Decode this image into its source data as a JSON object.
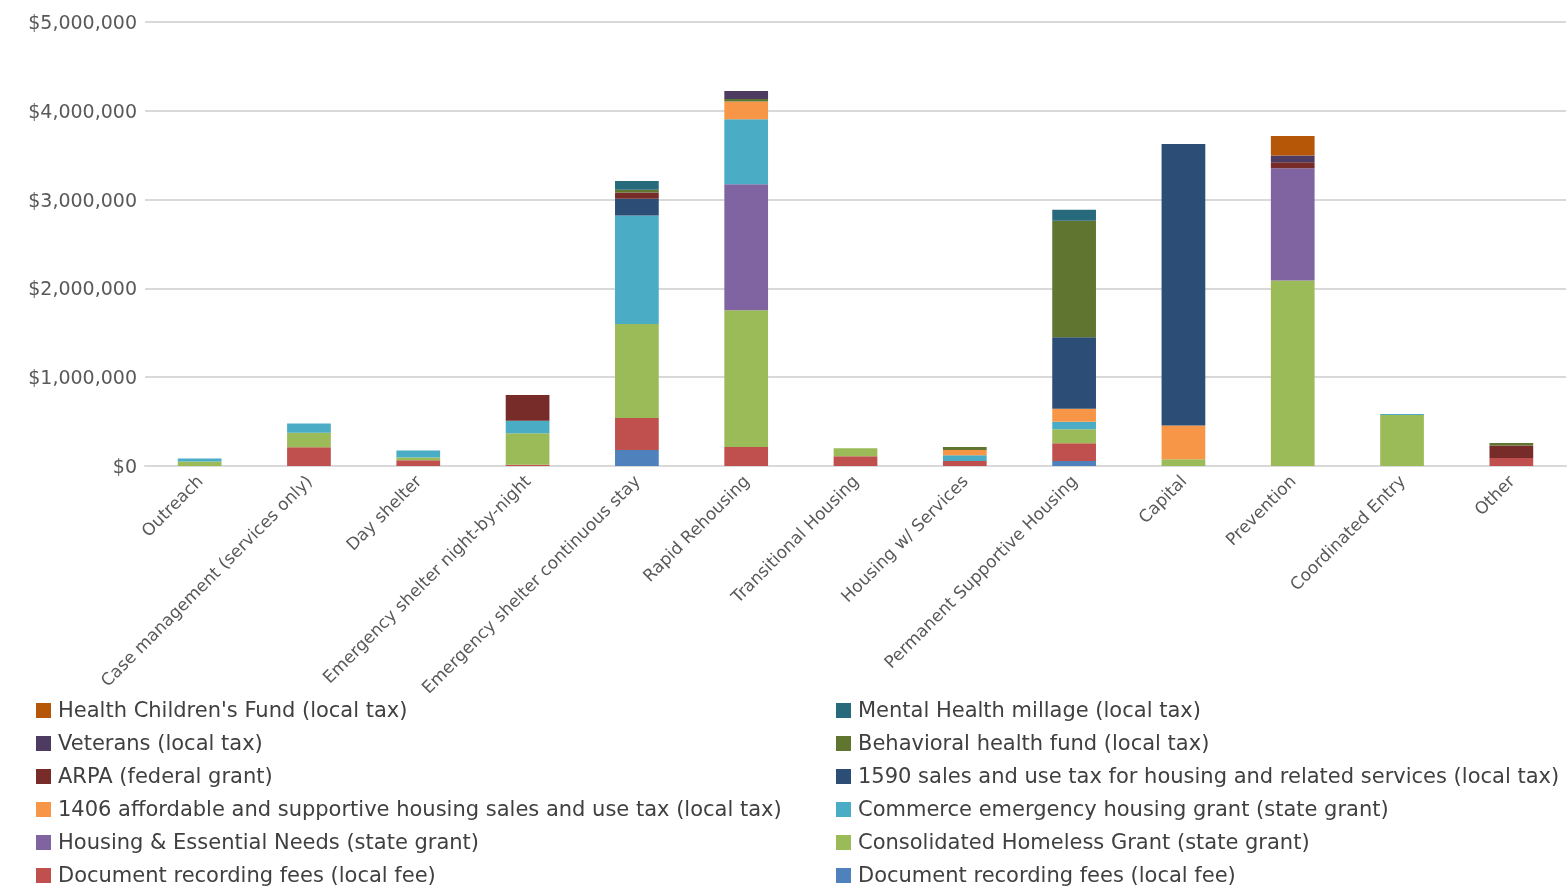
{
  "chart_data": {
    "type": "bar",
    "stacked": true,
    "grid": "y",
    "legend": "bottom",
    "categories": [
      "Outreach",
      "Case management (services only)",
      "Day shelter",
      "Emergency shelter night-by-night",
      "Emergency shelter continuous stay",
      "Rapid Rehousing",
      "Transitional Housing",
      "Housing w/ Services",
      "Permanent Supportive Housing",
      "Capital",
      "Prevention",
      "Coordinated Entry",
      "Other"
    ],
    "ylim": [
      0,
      5000000
    ],
    "yticks": [
      {
        "value": 0,
        "label": "$0"
      },
      {
        "value": 1000000,
        "label": "$1,000,000"
      },
      {
        "value": 2000000,
        "label": "$2,000,000"
      },
      {
        "value": 3000000,
        "label": "$3,000,000"
      },
      {
        "value": 4000000,
        "label": "$4,000,000"
      },
      {
        "value": 5000000,
        "label": "$5,000,000"
      }
    ],
    "series": [
      {
        "name": "Document recording fees (local fee)",
        "color": "#4f81bd",
        "values": [
          null,
          null,
          null,
          null,
          180000,
          null,
          null,
          null,
          56000,
          null,
          null,
          null,
          null
        ]
      },
      {
        "name": "Document recording fees (local fee)",
        "color": "#c0504d",
        "values": [
          null,
          210000,
          65000,
          15000,
          360000,
          214000,
          110000,
          55000,
          200000,
          null,
          null,
          null,
          90000
        ]
      },
      {
        "name": "Consolidated Homeless Grant (state grant)",
        "color": "#9bbb59",
        "values": [
          50000,
          165000,
          30000,
          355000,
          1060000,
          1540000,
          90000,
          null,
          157000,
          75000,
          2090000,
          575000,
          null
        ]
      },
      {
        "name": "Housing & Essential Needs (state grant)",
        "color": "#8064a2",
        "values": [
          null,
          null,
          null,
          null,
          null,
          1420000,
          null,
          null,
          null,
          null,
          1264000,
          null,
          null
        ]
      },
      {
        "name": "Commerce emergency housing grant (state grant)",
        "color": "#4bacc6",
        "values": [
          35000,
          105000,
          80000,
          140000,
          1220000,
          730000,
          null,
          65000,
          86000,
          null,
          null,
          10000,
          null
        ]
      },
      {
        "name": "1406 affordable and supportive housing sales and use tax (local tax)",
        "color": "#f79646",
        "values": [
          null,
          null,
          null,
          null,
          null,
          200000,
          null,
          60000,
          146000,
          380000,
          null,
          null,
          null
        ]
      },
      {
        "name": "1590 sales and use tax for housing and related services (local tax)",
        "color": "#2c4d75",
        "values": [
          null,
          null,
          null,
          null,
          190000,
          null,
          null,
          null,
          806000,
          3170000,
          null,
          null,
          null
        ]
      },
      {
        "name": "ARPA (federal grant)",
        "color": "#772c2a",
        "values": [
          null,
          null,
          null,
          290000,
          70000,
          null,
          null,
          null,
          null,
          null,
          68000,
          null,
          140000
        ]
      },
      {
        "name": "Behavioral health fund (local tax)",
        "color": "#5f7530",
        "values": [
          null,
          null,
          null,
          null,
          30000,
          30000,
          null,
          35000,
          1312000,
          null,
          null,
          null,
          30000
        ]
      },
      {
        "name": "Veterans (local tax)",
        "color": "#4d3b62",
        "values": [
          null,
          null,
          null,
          null,
          null,
          90000,
          null,
          null,
          null,
          null,
          75000,
          null,
          null
        ]
      },
      {
        "name": "Mental Health millage (local tax)",
        "color": "#276a7c",
        "values": [
          null,
          null,
          null,
          null,
          100000,
          null,
          null,
          null,
          124000,
          null,
          null,
          null,
          null
        ]
      },
      {
        "name": "Health Children's Fund (local tax)",
        "color": "#b65708",
        "values": [
          null,
          null,
          null,
          null,
          null,
          null,
          null,
          null,
          null,
          null,
          220000,
          null,
          null
        ]
      }
    ]
  }
}
